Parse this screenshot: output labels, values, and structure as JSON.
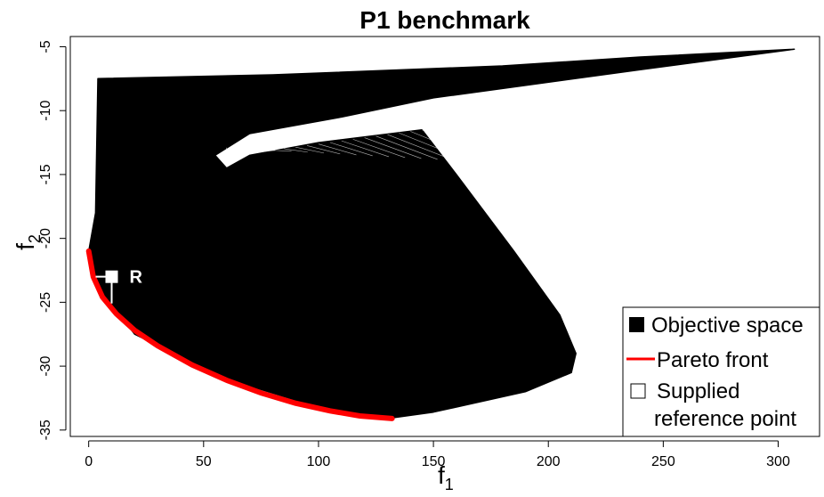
{
  "chart_data": {
    "type": "scatter",
    "title": "P1 benchmark",
    "xlabel_main": "f",
    "xlabel_sub": "1",
    "ylabel_main": "f",
    "ylabel_sub": "2",
    "xlim": [
      -8,
      318
    ],
    "ylim": [
      -35.5,
      -4.2
    ],
    "x_ticks": [
      0,
      50,
      100,
      150,
      200,
      250,
      300
    ],
    "y_ticks": [
      -5,
      -10,
      -15,
      -20,
      -25,
      -30,
      -35
    ],
    "grid": false,
    "colors": {
      "objective": "#000000",
      "pareto": "#ff0000",
      "reference": "#ffffff"
    },
    "series": [
      {
        "name": "Objective space",
        "kind": "filled-region",
        "boundary": [
          [
            5,
            -24
          ],
          [
            0,
            -21
          ],
          [
            3,
            -18
          ],
          [
            4,
            -7.5
          ],
          [
            80,
            -7.2
          ],
          [
            180,
            -6.5
          ],
          [
            240,
            -5.8
          ],
          [
            307,
            -5.2
          ],
          [
            240,
            -6.8
          ],
          [
            150,
            -9.0
          ],
          [
            110,
            -10.5
          ],
          [
            70,
            -11.8
          ],
          [
            55,
            -13.5
          ],
          [
            60,
            -14.5
          ],
          [
            70,
            -13.5
          ],
          [
            100,
            -12.5
          ],
          [
            145,
            -11.5
          ],
          [
            160,
            -15
          ],
          [
            185,
            -21
          ],
          [
            205,
            -26
          ],
          [
            212,
            -29
          ],
          [
            210,
            -30.5
          ],
          [
            190,
            -32
          ],
          [
            150,
            -33.6
          ],
          [
            130,
            -34.1
          ],
          [
            100,
            -33.2
          ],
          [
            60,
            -31
          ],
          [
            20,
            -27.5
          ]
        ]
      },
      {
        "name": "Pareto front",
        "kind": "line",
        "points": [
          [
            0,
            -21
          ],
          [
            2,
            -23
          ],
          [
            6,
            -24.6
          ],
          [
            12,
            -25.9
          ],
          [
            20,
            -27.2
          ],
          [
            30,
            -28.4
          ],
          [
            45,
            -29.9
          ],
          [
            60,
            -31.1
          ],
          [
            75,
            -32.1
          ],
          [
            90,
            -32.9
          ],
          [
            105,
            -33.5
          ],
          [
            118,
            -33.9
          ],
          [
            132,
            -34.1
          ]
        ]
      },
      {
        "name": "Supplied reference point",
        "kind": "point",
        "points": [
          [
            10,
            -23
          ]
        ]
      }
    ],
    "annotations": [
      {
        "text": "R",
        "x": 10,
        "y": -23
      }
    ],
    "legend": {
      "placement": "bottom-right",
      "entries": [
        {
          "label": "Objective space",
          "marker": "filled-square"
        },
        {
          "label": "Pareto front",
          "marker": "red-line"
        },
        {
          "label_line1": "Supplied",
          "label_line2": "reference point",
          "marker": "open-square"
        }
      ]
    }
  }
}
